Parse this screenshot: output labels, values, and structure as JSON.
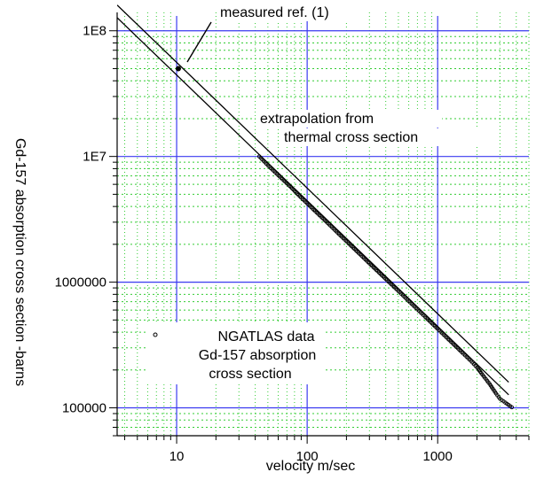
{
  "chart_data": {
    "type": "scatter",
    "x_scale": "log",
    "y_scale": "log",
    "xlim": [
      3.5,
      5000
    ],
    "ylim": [
      60000,
      140000000
    ],
    "xlabel": "velocity m/sec",
    "ylabel": "Gd-157 absorption cross section -barns",
    "x_ticks": [
      {
        "value": 10,
        "label": "10"
      },
      {
        "value": 100,
        "label": "100"
      },
      {
        "value": 1000,
        "label": "1000"
      }
    ],
    "y_ticks": [
      {
        "value": 100000,
        "label": "100000"
      },
      {
        "value": 1000000,
        "label": "1000000"
      },
      {
        "value": 10000000,
        "label": "1E7"
      },
      {
        "value": 100000000,
        "label": "1E8"
      }
    ],
    "grid": {
      "major": true,
      "minor": true,
      "major_color": "#3a3af0",
      "minor_color": "#33cc33"
    },
    "series": [
      {
        "kind": "line",
        "role": "extrapolation-upper",
        "color": "#000000",
        "x": [
          3.5,
          3500
        ],
        "y": [
          160000000,
          160000
        ]
      },
      {
        "kind": "line",
        "role": "extrapolation-lower",
        "color": "#000000",
        "x": [
          3.5,
          3500
        ],
        "y": [
          127000000,
          127000
        ]
      },
      {
        "kind": "points",
        "role": "ngatlas",
        "name": "NGATLAS data Gd-157 absorption cross section",
        "color": "#000000",
        "x": [
          43,
          50,
          60,
          75,
          90,
          110,
          140,
          180,
          230,
          300,
          400,
          500,
          600,
          700,
          800,
          1000,
          1200,
          1500,
          1800,
          2000,
          2200,
          2500,
          2800,
          3000,
          3300,
          3700
        ],
        "y": [
          10000000,
          8500000,
          7100000,
          5700000,
          4700000,
          3850000,
          3030000,
          2350000,
          1840000,
          1410000,
          1060000,
          850000,
          708000,
          607000,
          531000,
          425000,
          354000,
          283000,
          236000,
          210000,
          184000,
          155000,
          130000,
          118000,
          110000,
          101000
        ]
      },
      {
        "kind": "point",
        "role": "measured",
        "color": "#000000",
        "x": [
          10.3
        ],
        "y": [
          50000000
        ]
      }
    ],
    "annotations": [
      {
        "id": "measured",
        "lines": [
          "measured ref. (1)"
        ]
      },
      {
        "id": "extrapolation",
        "lines": [
          "extrapolation from",
          "thermal cross section"
        ]
      },
      {
        "id": "legend",
        "lines": [
          "NGATLAS data",
          "Gd-157 absorption",
          "cross section"
        ]
      }
    ]
  }
}
